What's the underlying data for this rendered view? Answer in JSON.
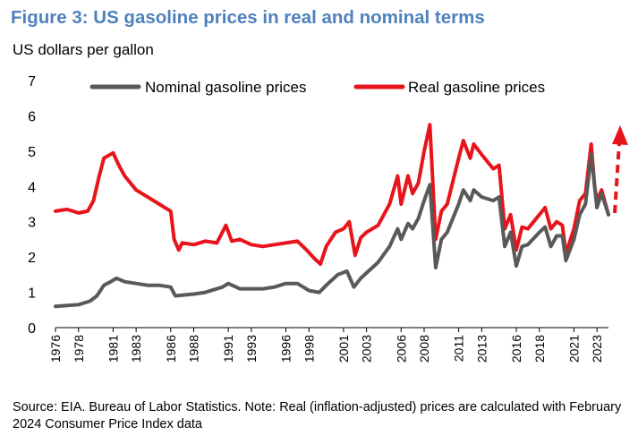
{
  "title": "Figure 3: US gasoline prices in real and nominal terms",
  "units_label": "US dollars per gallon",
  "source_note": "Source: EIA. Bureau of Labor Statistics. Note: Real (inflation-adjusted) prices are calculated with February 2024 Consumer Price Index data",
  "colors": {
    "title": "#4f81bd",
    "nominal": "#595959",
    "real": "#e8141b"
  },
  "chart_data": {
    "type": "line",
    "ylim": [
      0,
      7
    ],
    "xlim": [
      1976,
      2024
    ],
    "yticks": [
      0,
      1,
      2,
      3,
      4,
      5,
      6,
      7
    ],
    "xticks": [
      "1976",
      "1978",
      "1981",
      "1983",
      "1986",
      "1988",
      "1991",
      "1993",
      "1996",
      "1998",
      "2001",
      "2003",
      "2006",
      "2008",
      "2011",
      "2013",
      "2016",
      "2018",
      "2021",
      "2023"
    ],
    "grid": false,
    "legend_position": "top",
    "annotation": "red dashed upward arrow at the right end",
    "series": [
      {
        "name": "Nominal gasoline prices",
        "color": "#595959",
        "points": [
          [
            1976.0,
            0.6
          ],
          [
            1977.0,
            0.63
          ],
          [
            1978.0,
            0.65
          ],
          [
            1979.0,
            0.75
          ],
          [
            1979.6,
            0.9
          ],
          [
            1980.2,
            1.2
          ],
          [
            1980.8,
            1.3
          ],
          [
            1981.3,
            1.4
          ],
          [
            1982.0,
            1.3
          ],
          [
            1983.0,
            1.25
          ],
          [
            1984.0,
            1.2
          ],
          [
            1985.0,
            1.2
          ],
          [
            1986.0,
            1.15
          ],
          [
            1986.4,
            0.9
          ],
          [
            1987.0,
            0.92
          ],
          [
            1988.0,
            0.95
          ],
          [
            1989.0,
            1.0
          ],
          [
            1990.5,
            1.15
          ],
          [
            1991.0,
            1.25
          ],
          [
            1992.0,
            1.1
          ],
          [
            1993.0,
            1.1
          ],
          [
            1994.0,
            1.1
          ],
          [
            1995.0,
            1.15
          ],
          [
            1996.0,
            1.25
          ],
          [
            1997.0,
            1.25
          ],
          [
            1998.0,
            1.05
          ],
          [
            1998.9,
            1.0
          ],
          [
            1999.5,
            1.2
          ],
          [
            2000.5,
            1.5
          ],
          [
            2001.3,
            1.6
          ],
          [
            2001.9,
            1.15
          ],
          [
            2002.5,
            1.4
          ],
          [
            2003.0,
            1.55
          ],
          [
            2004.0,
            1.85
          ],
          [
            2005.0,
            2.3
          ],
          [
            2005.7,
            2.8
          ],
          [
            2006.0,
            2.5
          ],
          [
            2006.6,
            2.95
          ],
          [
            2007.0,
            2.8
          ],
          [
            2007.5,
            3.1
          ],
          [
            2008.0,
            3.6
          ],
          [
            2008.5,
            4.05
          ],
          [
            2009.0,
            1.7
          ],
          [
            2009.5,
            2.5
          ],
          [
            2010.0,
            2.7
          ],
          [
            2011.0,
            3.5
          ],
          [
            2011.4,
            3.9
          ],
          [
            2012.0,
            3.6
          ],
          [
            2012.3,
            3.9
          ],
          [
            2013.0,
            3.7
          ],
          [
            2014.0,
            3.6
          ],
          [
            2014.5,
            3.7
          ],
          [
            2015.0,
            2.3
          ],
          [
            2015.5,
            2.7
          ],
          [
            2016.0,
            1.75
          ],
          [
            2016.5,
            2.3
          ],
          [
            2017.0,
            2.35
          ],
          [
            2018.0,
            2.7
          ],
          [
            2018.5,
            2.85
          ],
          [
            2019.0,
            2.3
          ],
          [
            2019.5,
            2.6
          ],
          [
            2020.0,
            2.6
          ],
          [
            2020.3,
            1.9
          ],
          [
            2021.0,
            2.5
          ],
          [
            2021.5,
            3.2
          ],
          [
            2022.0,
            3.5
          ],
          [
            2022.5,
            4.9
          ],
          [
            2023.0,
            3.4
          ],
          [
            2023.4,
            3.8
          ],
          [
            2024.0,
            3.2
          ]
        ]
      },
      {
        "name": "Real gasoline prices",
        "color": "#e8141b",
        "points": [
          [
            1976.0,
            3.3
          ],
          [
            1977.0,
            3.35
          ],
          [
            1978.0,
            3.25
          ],
          [
            1978.8,
            3.3
          ],
          [
            1979.3,
            3.6
          ],
          [
            1979.8,
            4.3
          ],
          [
            1980.2,
            4.8
          ],
          [
            1981.0,
            4.95
          ],
          [
            1981.5,
            4.6
          ],
          [
            1982.0,
            4.3
          ],
          [
            1983.0,
            3.9
          ],
          [
            1984.0,
            3.7
          ],
          [
            1985.0,
            3.5
          ],
          [
            1986.0,
            3.3
          ],
          [
            1986.3,
            2.5
          ],
          [
            1986.7,
            2.2
          ],
          [
            1987.0,
            2.4
          ],
          [
            1988.0,
            2.35
          ],
          [
            1989.0,
            2.45
          ],
          [
            1990.0,
            2.4
          ],
          [
            1990.8,
            2.9
          ],
          [
            1991.3,
            2.45
          ],
          [
            1992.0,
            2.5
          ],
          [
            1993.0,
            2.35
          ],
          [
            1994.0,
            2.3
          ],
          [
            1995.0,
            2.35
          ],
          [
            1996.0,
            2.4
          ],
          [
            1997.0,
            2.45
          ],
          [
            1997.8,
            2.2
          ],
          [
            1998.5,
            1.95
          ],
          [
            1999.0,
            1.8
          ],
          [
            1999.5,
            2.3
          ],
          [
            2000.3,
            2.7
          ],
          [
            2001.0,
            2.8
          ],
          [
            2001.5,
            3.0
          ],
          [
            2002.0,
            2.05
          ],
          [
            2002.5,
            2.55
          ],
          [
            2003.0,
            2.7
          ],
          [
            2004.0,
            2.9
          ],
          [
            2005.0,
            3.5
          ],
          [
            2005.7,
            4.3
          ],
          [
            2006.0,
            3.5
          ],
          [
            2006.6,
            4.3
          ],
          [
            2007.0,
            3.8
          ],
          [
            2007.5,
            4.1
          ],
          [
            2008.0,
            5.0
          ],
          [
            2008.5,
            5.75
          ],
          [
            2009.0,
            2.5
          ],
          [
            2009.5,
            3.3
          ],
          [
            2010.0,
            3.5
          ],
          [
            2011.0,
            4.8
          ],
          [
            2011.4,
            5.3
          ],
          [
            2012.0,
            4.8
          ],
          [
            2012.3,
            5.2
          ],
          [
            2013.0,
            4.9
          ],
          [
            2013.5,
            4.7
          ],
          [
            2014.0,
            4.5
          ],
          [
            2014.5,
            4.6
          ],
          [
            2015.0,
            2.8
          ],
          [
            2015.5,
            3.2
          ],
          [
            2016.0,
            2.2
          ],
          [
            2016.5,
            2.85
          ],
          [
            2017.0,
            2.8
          ],
          [
            2018.0,
            3.2
          ],
          [
            2018.5,
            3.4
          ],
          [
            2019.0,
            2.8
          ],
          [
            2019.5,
            3.0
          ],
          [
            2020.0,
            2.9
          ],
          [
            2020.3,
            2.1
          ],
          [
            2021.0,
            2.8
          ],
          [
            2021.5,
            3.6
          ],
          [
            2022.0,
            3.8
          ],
          [
            2022.5,
            5.2
          ],
          [
            2022.8,
            4.0
          ],
          [
            2023.0,
            3.6
          ],
          [
            2023.4,
            3.9
          ],
          [
            2024.0,
            3.2
          ]
        ]
      }
    ]
  }
}
